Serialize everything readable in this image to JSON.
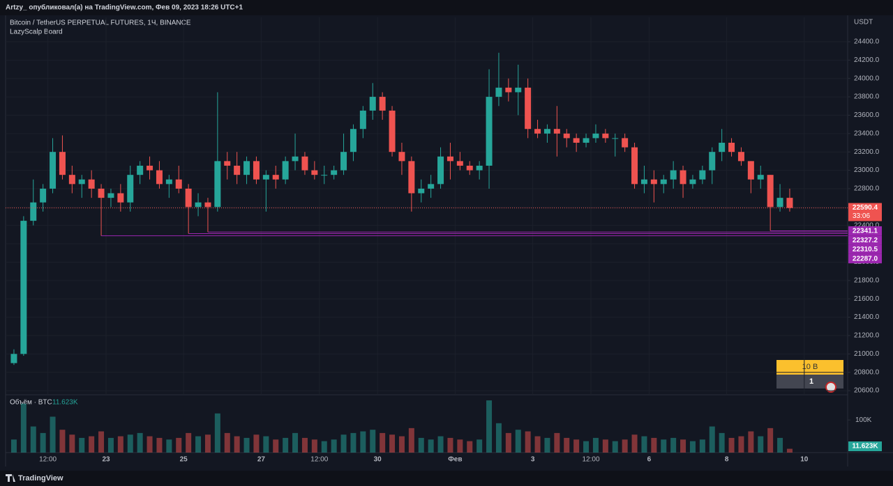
{
  "page": {
    "header": "Artzy_ опубликовал(а) на TradingView.com, Фев 09, 2023 18:26 UTC+1",
    "footer": "TradingView",
    "widget": {
      "top": "10 B",
      "bottom": "1"
    }
  },
  "chart_data": {
    "type": "candlestick",
    "title": "Bitcoin / TetherUS PERPETUAL FUTURES, 1Ч, BINANCE",
    "subtitle": "LazyScalp Board",
    "y_label": "USDT",
    "up_color": "#26a69a",
    "down_color": "#ef5350",
    "grid": true,
    "grid_color": "#1c202b",
    "categories": [
      null,
      null,
      null,
      null,
      "12:00",
      null,
      null,
      null,
      null,
      null,
      "23",
      null,
      null,
      null,
      null,
      null,
      null,
      null,
      "25",
      null,
      null,
      null,
      null,
      null,
      null,
      null,
      "27",
      null,
      null,
      null,
      null,
      null,
      "12:00",
      null,
      null,
      null,
      null,
      null,
      "30",
      null,
      null,
      null,
      null,
      null,
      null,
      null,
      "Фев",
      null,
      null,
      null,
      null,
      null,
      null,
      null,
      "3",
      null,
      null,
      null,
      null,
      null,
      "12:00",
      null,
      null,
      null,
      null,
      null,
      "6",
      null,
      null,
      null,
      null,
      null,
      null,
      null,
      "8",
      null,
      null,
      null,
      null,
      null,
      null,
      null,
      "10"
    ],
    "open": [
      20900,
      21000,
      22450,
      22650,
      22800,
      23200,
      22950,
      22850,
      22900,
      22800,
      22700,
      22750,
      22650,
      22950,
      23050,
      23000,
      22850,
      22900,
      22800,
      22600,
      22650,
      22600,
      23100,
      23050,
      22950,
      23100,
      22900,
      22950,
      22900,
      23100,
      23150,
      23000,
      22950,
      22950,
      23000,
      23200,
      23450,
      23650,
      23800,
      23650,
      23200,
      23100,
      22750,
      22800,
      22850,
      23150,
      23100,
      23050,
      23000,
      23050,
      23800,
      23900,
      23850,
      23900,
      23450,
      23400,
      23450,
      23400,
      23350,
      23300,
      23350,
      23400,
      23350,
      23350,
      23250,
      22850,
      22900,
      22850,
      22900,
      23000,
      22850,
      22900,
      23000,
      23200,
      23300,
      23200,
      23100,
      22900,
      22950,
      22600,
      22700,
      null,
      null
    ],
    "high": [
      21050,
      22500,
      22900,
      22850,
      23350,
      23380,
      23050,
      22950,
      23000,
      22850,
      22800,
      22850,
      23050,
      23100,
      23150,
      23100,
      22950,
      23050,
      22850,
      22750,
      22700,
      23850,
      23200,
      23200,
      23150,
      23150,
      23000,
      23050,
      23150,
      23400,
      23200,
      23100,
      23050,
      23050,
      23400,
      23500,
      23700,
      23950,
      23850,
      23700,
      23300,
      23150,
      22900,
      22950,
      23250,
      23300,
      23200,
      23100,
      23100,
      24100,
      24280,
      24000,
      24150,
      24000,
      23550,
      23500,
      23700,
      23450,
      23400,
      23400,
      23500,
      23450,
      23400,
      23400,
      23300,
      23050,
      23000,
      22950,
      23100,
      23050,
      22950,
      23050,
      23250,
      23450,
      23350,
      23250,
      23100,
      23050,
      22950,
      22850,
      22800,
      null,
      null
    ],
    "low": [
      20880,
      20980,
      22400,
      22550,
      22750,
      22900,
      22750,
      22700,
      22700,
      22287,
      22600,
      22550,
      22550,
      22850,
      22900,
      22800,
      22700,
      22750,
      22310.5,
      22500,
      22327.2,
      22550,
      22900,
      22850,
      22850,
      22850,
      22550,
      22800,
      22850,
      23000,
      22950,
      22900,
      22850,
      22900,
      22950,
      23100,
      23350,
      23550,
      23550,
      23150,
      22950,
      22550,
      22650,
      22700,
      22800,
      22900,
      23000,
      22950,
      22900,
      22800,
      23700,
      23750,
      23600,
      23350,
      23350,
      23300,
      23150,
      23250,
      23200,
      23250,
      23300,
      23300,
      23150,
      23200,
      22800,
      22750,
      22650,
      22750,
      22800,
      22700,
      22800,
      22850,
      22850,
      23100,
      23150,
      23050,
      22750,
      22800,
      22341.1,
      22550,
      22550,
      null,
      null
    ],
    "close": [
      21000,
      22450,
      22650,
      22800,
      23200,
      22950,
      22850,
      22900,
      22800,
      22700,
      22750,
      22650,
      22950,
      23050,
      23000,
      22850,
      22900,
      22800,
      22600,
      22650,
      22600,
      23100,
      23050,
      22950,
      23100,
      22900,
      22950,
      22900,
      23100,
      23150,
      23000,
      22950,
      22950,
      23000,
      23200,
      23450,
      23650,
      23800,
      23650,
      23200,
      23100,
      22750,
      22800,
      22850,
      23150,
      23100,
      23050,
      23000,
      23050,
      23800,
      23900,
      23850,
      23900,
      23450,
      23400,
      23450,
      23400,
      23350,
      23300,
      23350,
      23400,
      23350,
      23350,
      23250,
      22850,
      22900,
      22850,
      22900,
      23000,
      22850,
      22900,
      23000,
      23200,
      23300,
      23200,
      23100,
      22900,
      22950,
      22600,
      22700,
      22590.4,
      null,
      null
    ],
    "countdown": "33:06",
    "ylim": [
      20555,
      24665
    ],
    "yticks": [
      {
        "value": 24400,
        "label": "24400.0"
      },
      {
        "value": 24200,
        "label": "24200.0"
      },
      {
        "value": 24000,
        "label": "24000.0"
      },
      {
        "value": 23800,
        "label": "23800.0"
      },
      {
        "value": 23600,
        "label": "23600.0"
      },
      {
        "value": 23400,
        "label": "23400.0"
      },
      {
        "value": 23200,
        "label": "23200.0"
      },
      {
        "value": 23000,
        "label": "23000.0"
      },
      {
        "value": 22800,
        "label": "22800.0"
      },
      {
        "value": 22600,
        "label": "22600.0"
      },
      {
        "value": 22400,
        "label": "22400.0"
      },
      {
        "value": 22200,
        "label": "22200.0"
      },
      {
        "value": 22000,
        "label": "22000.0"
      },
      {
        "value": 21800,
        "label": "21800.0"
      },
      {
        "value": 21600,
        "label": "21600.0"
      },
      {
        "value": 21400,
        "label": "21400.0"
      },
      {
        "value": 21200,
        "label": "21200.0"
      },
      {
        "value": 21000,
        "label": "21000.0"
      },
      {
        "value": 20800,
        "label": "20800.0"
      },
      {
        "value": 20600,
        "label": "20600.0"
      }
    ],
    "levels": {
      "color": "#9c27b0",
      "values": [
        22341.1,
        22327.2,
        22310.5,
        22287
      ],
      "value_labels": [
        "22341.1",
        "22327.2",
        "22310.5",
        "22287.0"
      ]
    },
    "volume": {
      "name": "Объём · BTC",
      "last_label": "11.623K",
      "values": [
        40000,
        150000,
        80000,
        60000,
        110000,
        70000,
        55000,
        45000,
        50000,
        65000,
        45000,
        50000,
        55000,
        60000,
        50000,
        45000,
        40000,
        45000,
        60000,
        50000,
        55000,
        120000,
        60000,
        50000,
        45000,
        55000,
        50000,
        40000,
        45000,
        60000,
        45000,
        40000,
        35000,
        40000,
        55000,
        60000,
        65000,
        70000,
        60000,
        55000,
        50000,
        75000,
        45000,
        40000,
        50000,
        45000,
        40000,
        35000,
        40000,
        160000,
        90000,
        60000,
        70000,
        65000,
        50000,
        45000,
        60000,
        45000,
        40000,
        35000,
        45000,
        40000,
        35000,
        40000,
        55000,
        50000,
        45000,
        40000,
        45000,
        40000,
        35000,
        40000,
        80000,
        60000,
        45000,
        50000,
        65000,
        50000,
        75000,
        45000,
        11623,
        null,
        null
      ],
      "ylim": [
        0,
        175000
      ],
      "yticks": [
        {
          "value": 100000,
          "label": "100K"
        }
      ]
    }
  }
}
